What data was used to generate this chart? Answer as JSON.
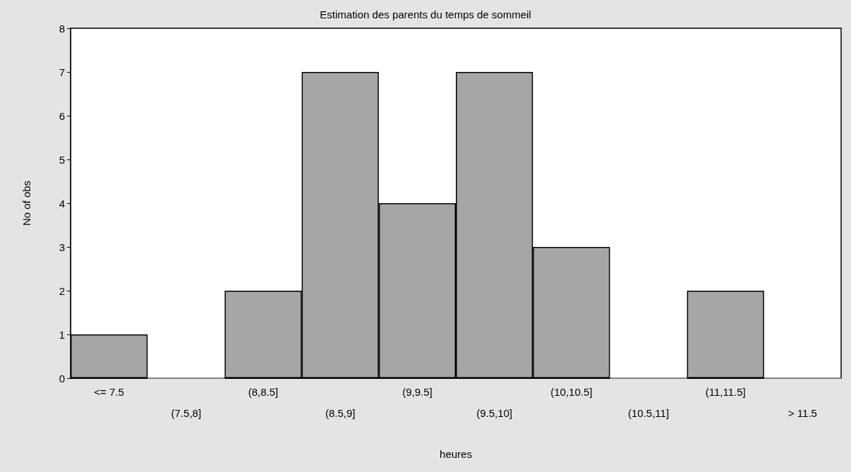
{
  "chart_data": {
    "type": "bar",
    "title": "Estimation des parents du temps de sommeil",
    "xlabel": "heures",
    "ylabel": "No of obs",
    "categories": [
      "<= 7.5",
      "(7.5,8]",
      "(8,8.5]",
      "(8.5,9]",
      "(9,9.5]",
      "(9.5,10]",
      "(10,10.5]",
      "(10.5,11]",
      "(11,11.5]",
      "> 11.5"
    ],
    "values": [
      1,
      0,
      2,
      7,
      4,
      7,
      3,
      0,
      2,
      0
    ],
    "color": "#a6a6a6",
    "ylim": [
      0,
      8
    ],
    "yticks": [
      0,
      1,
      2,
      3,
      4,
      5,
      6,
      7,
      8
    ],
    "grid": false
  }
}
